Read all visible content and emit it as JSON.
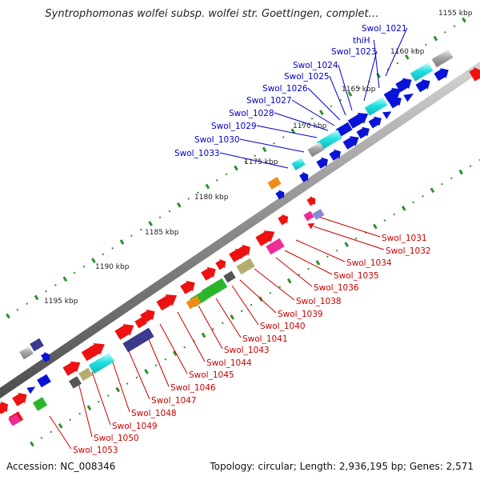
{
  "title": "Syntrophomonas wolfei subsp. wolfei str. Goettingen, complet…",
  "footer": {
    "accession_label": "Accession:",
    "accession": "NC_008346",
    "summary": "Topology: circular; Length: 2,936,195 bp; Genes: 2,571"
  },
  "colors": {
    "plus_strand_label": "#0000cc",
    "minus_strand_label": "#cc0000",
    "axis": "#8a8a8a",
    "ticks": "#2f8f2f",
    "blue": "#0a14d6",
    "red": "#ee1111",
    "cyan": "#22e0e0",
    "gray": "#a6a6a6",
    "darkgray": "#555555",
    "navy": "#3b3a8c",
    "green": "#2bb52b",
    "orange": "#ef8c16",
    "olive": "#b4ad70",
    "pink": "#ee2c98",
    "lavender": "#8a88d4"
  },
  "kbp_labels": [
    "1155 kbp",
    "1160 kbp",
    "1165 kbp",
    "1170 kbp",
    "1175 kbp",
    "1180 kbp",
    "1185 kbp",
    "1190 kbp",
    "1195 kbp"
  ],
  "top_genes": [
    "Swol_1021",
    "thiH",
    "Swol_1023",
    "Swol_1024",
    "Swol_1025",
    "Swol_1026",
    "Swol_1027",
    "Swol_1028",
    "Swol_1029",
    "Swol_1030",
    "Swol_1033"
  ],
  "bottom_genes": [
    "Swol_1031",
    "Swol_1032",
    "Swol_1034",
    "Swol_1035",
    "Swol_1036",
    "Swol_1038",
    "Swol_1039",
    "Swol_1040",
    "Swol_1041",
    "Swol_1043",
    "Swol_1044",
    "Swol_1045",
    "Swol_1046",
    "Swol_1047",
    "Swol_1048",
    "Swol_1049",
    "Swol_1050",
    "Swol_1053"
  ]
}
